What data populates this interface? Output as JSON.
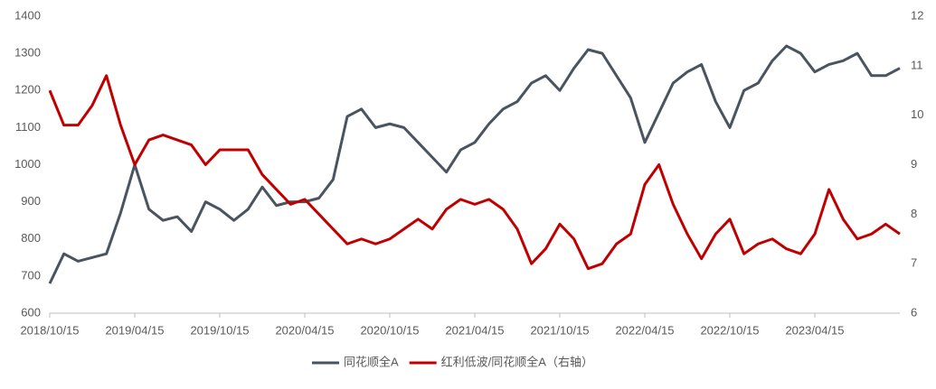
{
  "chart_data": {
    "type": "line",
    "categories": [
      "2018/10/15",
      null,
      null,
      null,
      null,
      null,
      "2019/04/15",
      null,
      null,
      null,
      null,
      null,
      "2019/10/15",
      null,
      null,
      null,
      null,
      null,
      "2020/04/15",
      null,
      null,
      null,
      null,
      null,
      "2020/10/15",
      null,
      null,
      null,
      null,
      null,
      "2021/04/15",
      null,
      null,
      null,
      null,
      null,
      "2021/10/15",
      null,
      null,
      null,
      null,
      null,
      "2022/04/15",
      null,
      null,
      null,
      null,
      null,
      "2022/10/15",
      null,
      null,
      null,
      null,
      null,
      "2023/04/15",
      null,
      null,
      null,
      null,
      null,
      null
    ],
    "series": [
      {
        "name": "同花顺全A",
        "color": "#4a5360",
        "values": [
          680,
          760,
          740,
          750,
          760,
          870,
          1000,
          880,
          850,
          860,
          820,
          900,
          880,
          850,
          880,
          940,
          890,
          900,
          900,
          910,
          960,
          1130,
          1150,
          1100,
          1110,
          1100,
          1060,
          1020,
          980,
          1040,
          1060,
          1110,
          1150,
          1170,
          1220,
          1240,
          1200,
          1260,
          1310,
          1300,
          1240,
          1180,
          1060,
          1140,
          1220,
          1250,
          1270,
          1170,
          1100,
          1200,
          1220,
          1280,
          1320,
          1300,
          1250,
          1270,
          1280,
          1300,
          1240,
          1240,
          1260
        ]
      },
      {
        "name": "红利低波/同花顺全A（右轴）",
        "color": "#c00000",
        "axis": "y2",
        "values": [
          10.5,
          9.8,
          9.8,
          10.2,
          10.8,
          9.8,
          9.0,
          9.5,
          9.6,
          9.5,
          9.4,
          9.0,
          9.3,
          9.3,
          9.3,
          8.8,
          8.5,
          8.2,
          8.3,
          8.0,
          7.7,
          7.4,
          7.5,
          7.4,
          7.5,
          7.7,
          7.9,
          7.7,
          8.1,
          8.3,
          8.2,
          8.3,
          8.1,
          7.7,
          7.0,
          7.3,
          7.8,
          7.5,
          6.9,
          7.0,
          7.4,
          7.6,
          8.6,
          9.0,
          8.2,
          7.6,
          7.1,
          7.6,
          7.9,
          7.2,
          7.4,
          7.5,
          7.3,
          7.2,
          7.6,
          8.5,
          7.9,
          7.5,
          7.6,
          7.8,
          7.6
        ]
      }
    ],
    "ylim": [
      600,
      1400
    ],
    "yticks": [
      600,
      700,
      800,
      900,
      1000,
      1100,
      1200,
      1300,
      1400
    ],
    "y2lim": [
      6,
      12
    ],
    "y2ticks": [
      6,
      7,
      8,
      9,
      10,
      11,
      12
    ],
    "legend": "bottom"
  }
}
